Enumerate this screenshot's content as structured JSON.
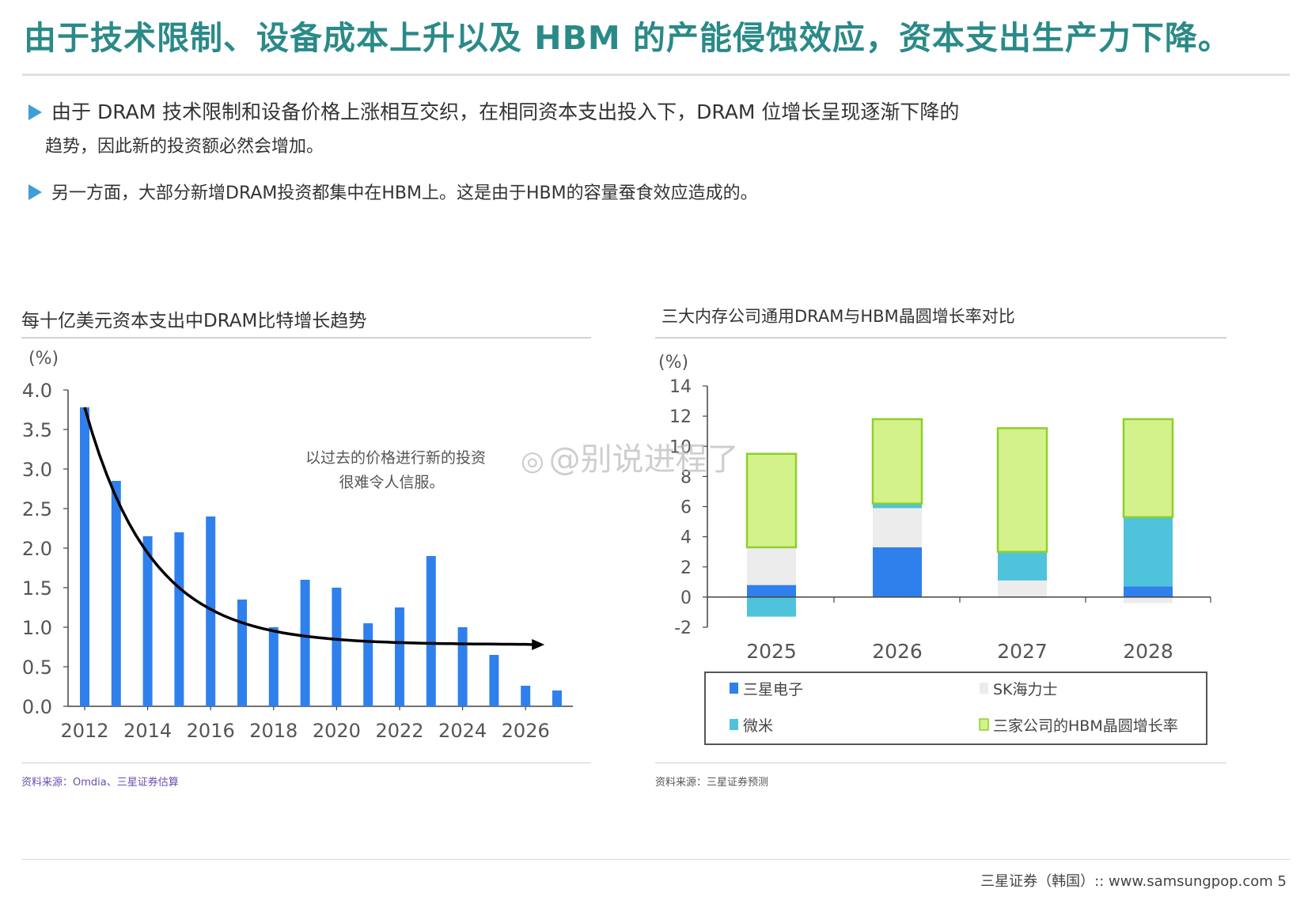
{
  "page": {
    "title": "由于技术限制、设备成本上升以及 HBM 的产能侵蚀效应，资本支出生产力下降。",
    "bullets": [
      {
        "line1": "由于 DRAM 技术限制和设备价格上涨相互交织，在相同资本支出投入下，DRAM 位增长呈现逐渐下降的",
        "line2": "趋势，因此新的投资额必然会增加。"
      },
      {
        "line1": "另一方面，大部分新增DRAM投资都集中在HBM上。这是由于HBM的容量蚕食效应造成的。"
      }
    ],
    "footer": "三星证券（韩国）:: www.samsungpop.com 5",
    "watermark": "@别说进程了",
    "colors": {
      "title": "#2a8a88",
      "bullet_marker": "#3d9fd6",
      "source_left": "#6a4fb0",
      "source_right": "#555555"
    }
  },
  "left_chart": {
    "title": "每十亿美元资本支出中DRAM比特增长趋势",
    "source": "资料来源：Omdia、三星证券估算"
  },
  "right_chart": {
    "title": "三大内存公司通用DRAM与HBM晶圆增长率对比",
    "source": "资料来源：三星证券预测"
  },
  "chart_data": [
    {
      "type": "bar",
      "ylabel": "(%)",
      "ylim": [
        0,
        4.0
      ],
      "yticks": [
        "4.0",
        "3.5",
        "3.0",
        "2.5",
        "2.0",
        "1.5",
        "1.0",
        "0.5",
        "0.0"
      ],
      "xtick_labels": [
        "2012",
        "2014",
        "2016",
        "2018",
        "2020",
        "2022",
        "2024",
        "2026"
      ],
      "categories": [
        "2012",
        "2013",
        "2014",
        "2015",
        "2016",
        "2017",
        "2018",
        "2019",
        "2020",
        "2021",
        "2022",
        "2023",
        "2024",
        "2025",
        "2026",
        "2027"
      ],
      "values": [
        3.78,
        2.85,
        2.15,
        2.2,
        2.4,
        1.35,
        1.0,
        1.6,
        1.5,
        1.05,
        1.25,
        1.9,
        1.0,
        0.65,
        0.26,
        0.2
      ],
      "bar_color": "#2f80ed",
      "trend_line": {
        "x_start": "2012",
        "x_end": "2026",
        "y_start": 3.78,
        "y_end": 0.78,
        "color": "#000000",
        "arrow": true
      },
      "annotation": [
        "以过去的价格进行新的投资",
        "很难令人信服。"
      ],
      "grid": false
    },
    {
      "type": "bar",
      "stacked": true,
      "ylabel": "(%)",
      "ylim": [
        -2,
        14
      ],
      "yticks": [
        "14",
        "12",
        "10",
        "8",
        "6",
        "4",
        "2",
        "0",
        "-2"
      ],
      "categories": [
        "2025",
        "2026",
        "2027",
        "2028"
      ],
      "series": [
        {
          "name": "三星电子",
          "color": "#2f80ed",
          "values": [
            0.8,
            3.3,
            0.0,
            0.7
          ]
        },
        {
          "name": "SK海力士",
          "color": "#ececec",
          "values": [
            2.5,
            2.6,
            1.1,
            -0.4
          ]
        },
        {
          "name": "微米",
          "color": "#4fc3dc",
          "values": [
            -1.3,
            0.3,
            1.9,
            4.6
          ]
        },
        {
          "name": "三家公司的HBM晶圆增长率",
          "color": "#d4f28c",
          "border": "#8dd02a",
          "values": [
            6.2,
            5.6,
            8.2,
            6.5
          ]
        }
      ],
      "legend_position": "bottom",
      "grid": false
    }
  ]
}
